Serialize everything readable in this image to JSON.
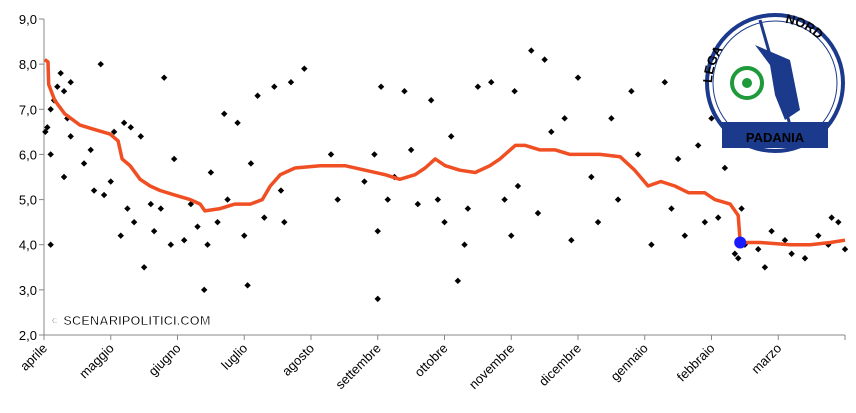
{
  "chart_data": {
    "type": "scatter",
    "xlim": [
      0,
      12
    ],
    "ylim": [
      2,
      9
    ],
    "xticks": [
      {
        "value": 0,
        "label": "aprile"
      },
      {
        "value": 1,
        "label": "maggio"
      },
      {
        "value": 2,
        "label": "giugno"
      },
      {
        "value": 3,
        "label": "luglio"
      },
      {
        "value": 4,
        "label": "agosto"
      },
      {
        "value": 5,
        "label": "settembre"
      },
      {
        "value": 6,
        "label": "ottobre"
      },
      {
        "value": 7,
        "label": "novembre"
      },
      {
        "value": 8,
        "label": "dicembre"
      },
      {
        "value": 9,
        "label": "gennaio"
      },
      {
        "value": 10,
        "label": "febbraio"
      },
      {
        "value": 11,
        "label": "marzo"
      }
    ],
    "yticks": [
      {
        "value": 2,
        "label": "2,0"
      },
      {
        "value": 3,
        "label": "3,0"
      },
      {
        "value": 4,
        "label": "4,0"
      },
      {
        "value": 5,
        "label": "5,0"
      },
      {
        "value": 6,
        "label": "6,0"
      },
      {
        "value": 7,
        "label": "7,0"
      },
      {
        "value": 8,
        "label": "8,0"
      },
      {
        "value": 9,
        "label": "9,0"
      }
    ],
    "watermark": "© SCENARIPOLITICI.COM",
    "logo": {
      "words": [
        "LEGA",
        "NORD"
      ],
      "banner": "PADANIA"
    },
    "series": [
      {
        "type": "scatter",
        "color": "#000000",
        "x": [
          0.02,
          0.05,
          0.1,
          0.1,
          0.1,
          0.15,
          0.2,
          0.25,
          0.3,
          0.3,
          0.35,
          0.4,
          0.4,
          0.6,
          0.7,
          0.75,
          0.85,
          0.9,
          1.0,
          1.05,
          1.15,
          1.2,
          1.25,
          1.3,
          1.35,
          1.45,
          1.5,
          1.6,
          1.65,
          1.75,
          1.8,
          1.9,
          1.95,
          2.1,
          2.2,
          2.3,
          2.4,
          2.45,
          2.5,
          2.6,
          2.7,
          2.75,
          2.9,
          3.0,
          3.05,
          3.1,
          3.2,
          3.3,
          3.45,
          3.55,
          3.6,
          3.7,
          3.9,
          4.3,
          4.4,
          4.8,
          4.95,
          5.0,
          5.0,
          5.05,
          5.15,
          5.25,
          5.4,
          5.5,
          5.6,
          5.8,
          5.9,
          6.0,
          6.1,
          6.2,
          6.3,
          6.35,
          6.5,
          6.7,
          6.9,
          7.0,
          7.05,
          7.1,
          7.3,
          7.4,
          7.5,
          7.6,
          7.8,
          7.9,
          8.0,
          8.2,
          8.3,
          8.5,
          8.6,
          8.8,
          8.9,
          9.1,
          9.3,
          9.4,
          9.5,
          9.6,
          9.8,
          9.9,
          10.0,
          10.1,
          10.2,
          10.35,
          10.4,
          10.45,
          10.5,
          10.7,
          10.8,
          10.9,
          11.1,
          11.2,
          11.4,
          11.6,
          11.75,
          11.8,
          11.9,
          12.0
        ],
        "values": [
          6.5,
          6.6,
          7.0,
          6.0,
          4.0,
          7.2,
          7.5,
          7.8,
          7.4,
          5.5,
          6.8,
          7.6,
          6.4,
          5.8,
          6.1,
          5.2,
          8.0,
          5.1,
          5.4,
          6.5,
          4.2,
          6.7,
          4.8,
          6.6,
          4.5,
          6.4,
          3.5,
          4.9,
          4.3,
          4.8,
          7.7,
          4.0,
          5.9,
          4.1,
          4.9,
          4.4,
          3.0,
          4.0,
          5.6,
          4.5,
          6.9,
          5.0,
          6.7,
          4.2,
          3.1,
          5.8,
          7.3,
          4.6,
          7.5,
          5.2,
          4.5,
          7.6,
          7.9,
          6.0,
          5.0,
          5.4,
          6.0,
          4.3,
          2.8,
          7.5,
          5.0,
          5.5,
          7.4,
          6.1,
          4.9,
          7.2,
          5.0,
          4.5,
          6.4,
          3.2,
          4.0,
          4.8,
          7.5,
          7.6,
          5.0,
          4.2,
          7.4,
          5.3,
          8.3,
          4.7,
          8.1,
          6.5,
          6.8,
          4.1,
          7.7,
          5.5,
          4.5,
          6.8,
          5.0,
          7.4,
          6.0,
          4.0,
          7.6,
          4.8,
          5.9,
          4.2,
          6.2,
          4.5,
          6.8,
          4.6,
          5.7,
          3.8,
          3.7,
          4.8,
          4.0,
          3.9,
          3.5,
          4.3,
          4.1,
          3.8,
          3.7,
          4.2,
          4.0,
          4.6,
          4.5,
          3.9
        ]
      },
      {
        "type": "line",
        "color": "#f04e23",
        "x": [
          0.01,
          0.06,
          0.07,
          0.16,
          0.31,
          0.54,
          0.76,
          0.99,
          1.11,
          1.17,
          1.29,
          1.44,
          1.59,
          1.74,
          1.96,
          2.19,
          2.34,
          2.41,
          2.64,
          2.86,
          3.09,
          3.27,
          3.39,
          3.54,
          3.76,
          4.14,
          4.51,
          4.81,
          5.11,
          5.33,
          5.56,
          5.71,
          5.86,
          6.01,
          6.23,
          6.46,
          6.68,
          6.83,
          7.06,
          7.21,
          7.43,
          7.66,
          7.88,
          8.1,
          8.33,
          8.63,
          8.85,
          9.05,
          9.24,
          9.45,
          9.66,
          9.9,
          10.05,
          10.28,
          10.4,
          10.43,
          10.73,
          11.18,
          11.48,
          11.78,
          12.0
        ],
        "values": [
          8.1,
          8.05,
          7.55,
          7.2,
          6.9,
          6.65,
          6.55,
          6.45,
          6.3,
          5.9,
          5.75,
          5.45,
          5.3,
          5.2,
          5.1,
          5.0,
          4.9,
          4.75,
          4.8,
          4.9,
          4.9,
          5.0,
          5.3,
          5.55,
          5.7,
          5.75,
          5.75,
          5.65,
          5.55,
          5.45,
          5.55,
          5.7,
          5.9,
          5.75,
          5.65,
          5.6,
          5.75,
          5.9,
          6.2,
          6.2,
          6.1,
          6.1,
          6.0,
          6.0,
          6.0,
          5.95,
          5.65,
          5.3,
          5.4,
          5.3,
          5.15,
          5.15,
          5.0,
          4.9,
          4.65,
          4.05,
          4.05,
          4.0,
          4.0,
          4.05,
          4.1
        ]
      },
      {
        "type": "point",
        "color": "#1a1aff",
        "x": [
          10.43
        ],
        "values": [
          4.05
        ]
      }
    ]
  }
}
